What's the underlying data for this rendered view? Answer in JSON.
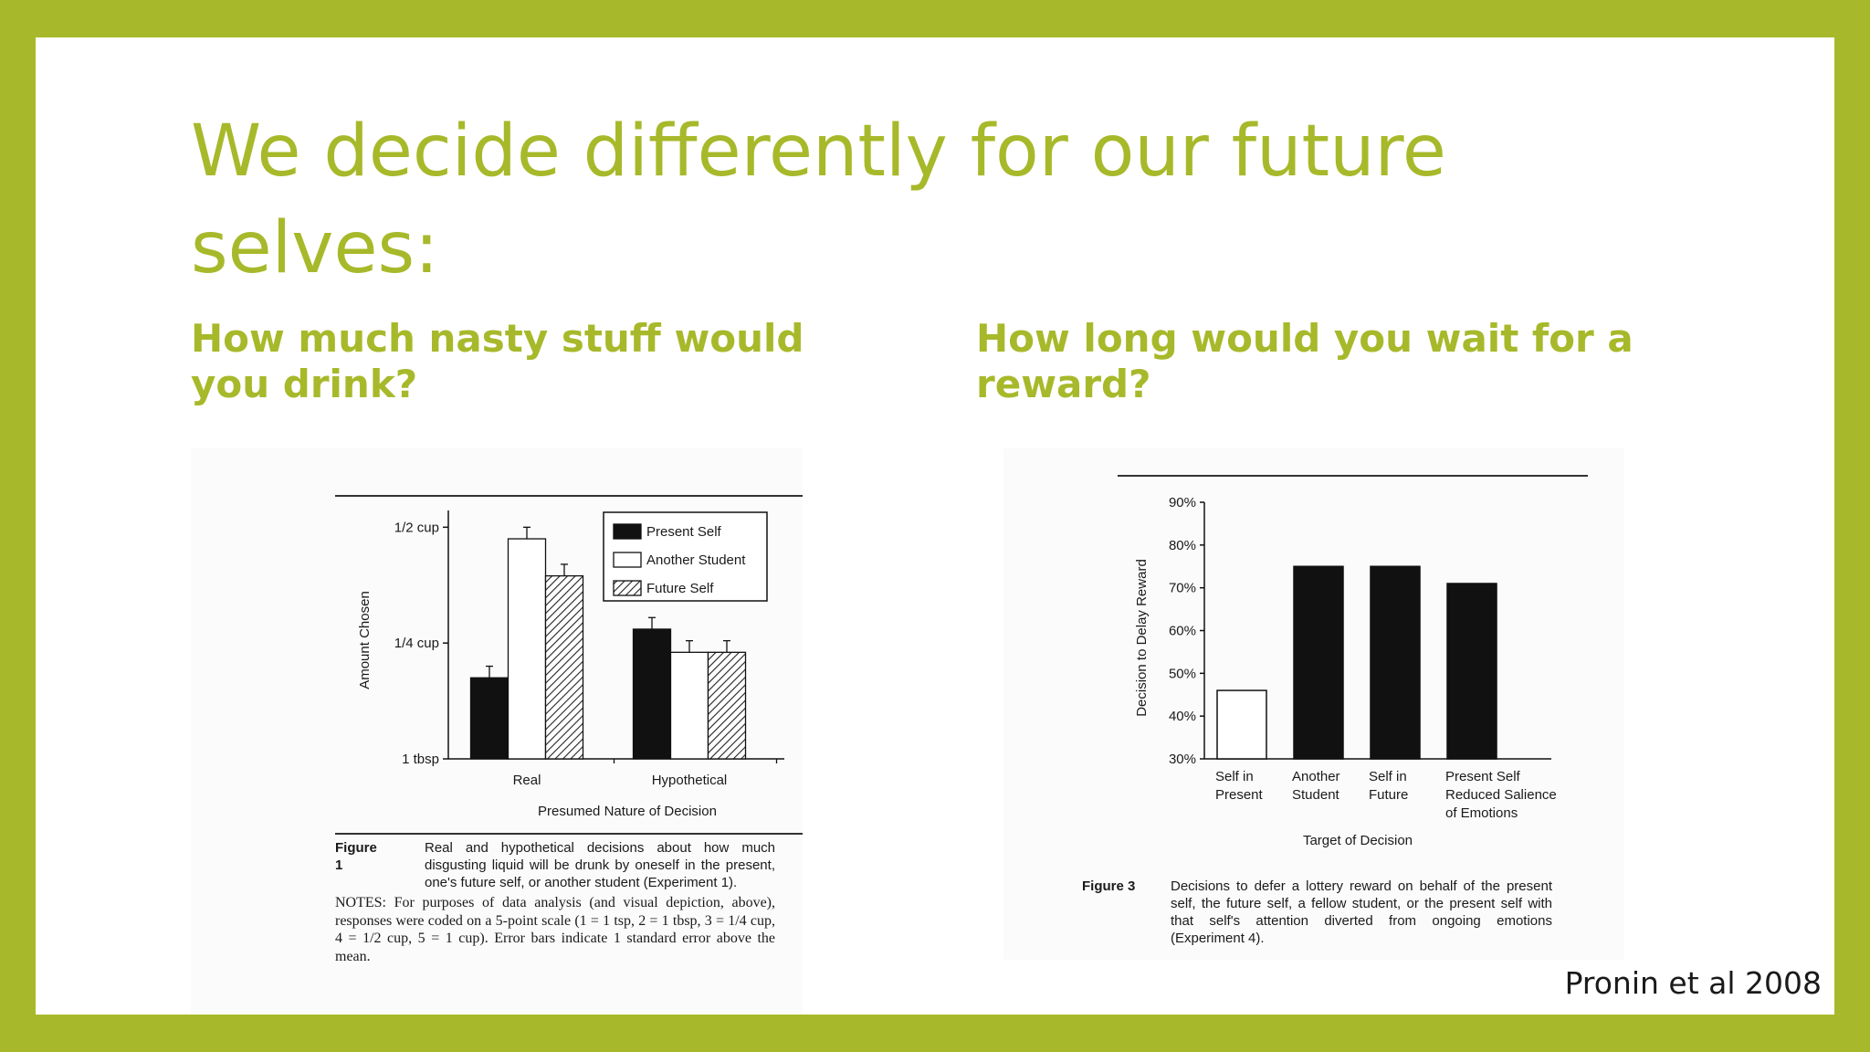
{
  "slide": {
    "title": "We decide differently for our future selves:",
    "left_heading": "How much nasty stuff would you drink?",
    "right_heading": "How long would you wait for a reward?",
    "credit": "Pronin et al 2008",
    "accent_color": "#a7b92a"
  },
  "chart_data": [
    {
      "type": "bar",
      "ylabel": "Amount Chosen",
      "xlabel": "Presumed Nature of Decision",
      "categories": [
        "Real",
        "Hypothetical"
      ],
      "yticks": [
        {
          "value": 2,
          "label": "1 tbsp"
        },
        {
          "value": 3,
          "label": "1/4 cup"
        },
        {
          "value": 4,
          "label": "1/2 cup"
        }
      ],
      "ylim": [
        2,
        4.05
      ],
      "series": [
        {
          "name": "Present Self",
          "fill": "solid",
          "values": [
            2.7,
            3.12
          ],
          "errors": [
            0.1,
            0.1
          ]
        },
        {
          "name": "Another Student",
          "fill": "open",
          "values": [
            3.9,
            2.92
          ],
          "errors": [
            0.1,
            0.1
          ]
        },
        {
          "name": "Future Self",
          "fill": "hatched",
          "values": [
            3.58,
            2.92
          ],
          "errors": [
            0.1,
            0.1
          ]
        }
      ],
      "legend_position": "top-right",
      "caption_label": "Figure 1",
      "caption_text": "Real and hypothetical decisions about how much disgusting liquid will be drunk by oneself in the present, one's future self, or another student (Experiment 1).",
      "notes": "NOTES: For purposes of data analysis (and visual depiction, above), responses were coded on a 5-point scale (1 = 1 tsp, 2 = 1 tbsp, 3 = 1/4 cup, 4 = 1/2 cup, 5 = 1 cup). Error bars indicate 1 standard error above the mean."
    },
    {
      "type": "bar",
      "ylabel": "Decision to Delay Reward",
      "xlabel": "Target of Decision",
      "yticks": [
        {
          "value": 30,
          "label": "30%"
        },
        {
          "value": 40,
          "label": "40%"
        },
        {
          "value": 50,
          "label": "50%"
        },
        {
          "value": 60,
          "label": "60%"
        },
        {
          "value": 70,
          "label": "70%"
        },
        {
          "value": 80,
          "label": "80%"
        },
        {
          "value": 90,
          "label": "90%"
        }
      ],
      "ylim": [
        30,
        90
      ],
      "bars": [
        {
          "label": [
            "Self in",
            "Present"
          ],
          "value": 46,
          "fill": "open"
        },
        {
          "label": [
            "Another",
            "Student"
          ],
          "value": 75,
          "fill": "solid"
        },
        {
          "label": [
            "Self in",
            "Future"
          ],
          "value": 75,
          "fill": "solid"
        },
        {
          "label": [
            "Present Self",
            "Reduced Salience",
            "of Emotions"
          ],
          "value": 71,
          "fill": "solid"
        }
      ],
      "caption_label": "Figure 3",
      "caption_text": "Decisions to defer a lottery reward on behalf of the present self, the future self, a fellow student, or the present self with that self's attention diverted from ongoing emotions (Experiment 4)."
    }
  ]
}
